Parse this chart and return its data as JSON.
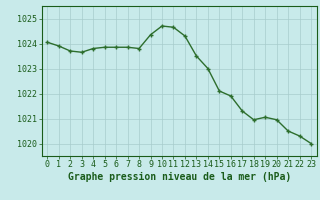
{
  "x": [
    0,
    1,
    2,
    3,
    4,
    5,
    6,
    7,
    8,
    9,
    10,
    11,
    12,
    13,
    14,
    15,
    16,
    17,
    18,
    19,
    20,
    21,
    22,
    23
  ],
  "y": [
    1024.05,
    1023.9,
    1023.7,
    1023.65,
    1023.8,
    1023.85,
    1023.85,
    1023.85,
    1023.8,
    1024.35,
    1024.7,
    1024.65,
    1024.3,
    1023.5,
    1023.0,
    1022.1,
    1021.9,
    1021.3,
    1020.95,
    1021.05,
    1020.95,
    1020.5,
    1020.3,
    1020.0
  ],
  "line_color": "#2d6e2d",
  "marker_color": "#2d6e2d",
  "bg_color": "#c8eaea",
  "grid_color": "#a8cccc",
  "xlabel": "Graphe pression niveau de la mer (hPa)",
  "xlabel_color": "#1a5c1a",
  "tick_color": "#1a5c1a",
  "ylim": [
    1019.5,
    1025.5
  ],
  "yticks": [
    1020,
    1021,
    1022,
    1023,
    1024,
    1025
  ],
  "xlim": [
    -0.5,
    23.5
  ],
  "xticks": [
    0,
    1,
    2,
    3,
    4,
    5,
    6,
    7,
    8,
    9,
    10,
    11,
    12,
    13,
    14,
    15,
    16,
    17,
    18,
    19,
    20,
    21,
    22,
    23
  ],
  "tick_fontsize": 6.0,
  "xlabel_fontsize": 7.0,
  "line_width": 1.0,
  "marker_size": 3.5,
  "marker_ew": 1.0
}
